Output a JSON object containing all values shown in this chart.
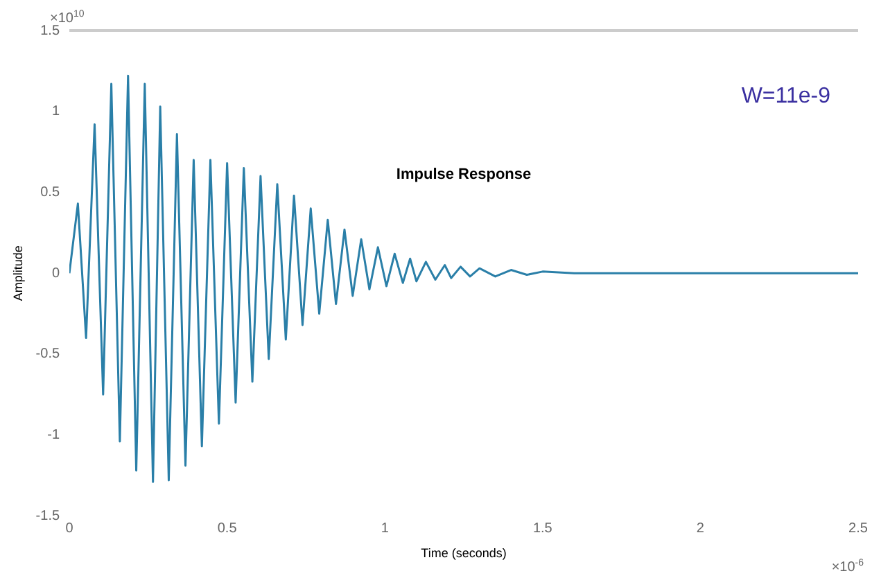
{
  "chart_data": {
    "type": "line",
    "title": "Impulse Response",
    "xlabel": "Time (seconds)",
    "ylabel": "Amplitude",
    "annotations": [
      "W=11e-9",
      "×10$^{10}$",
      "×10$^{-6}$"
    ],
    "x": [
      0,
      0.027,
      0.053,
      0.08,
      0.107,
      0.133,
      0.16,
      0.186,
      0.212,
      0.239,
      0.265,
      0.288,
      0.315,
      0.341,
      0.368,
      0.394,
      0.42,
      0.447,
      0.474,
      0.5,
      0.527,
      0.553,
      0.58,
      0.606,
      0.632,
      0.659,
      0.686,
      0.712,
      0.739,
      0.765,
      0.792,
      0.819,
      0.845,
      0.872,
      0.898,
      0.925,
      0.951,
      0.978,
      1.005,
      1.031,
      1.057,
      1.08,
      1.1,
      1.13,
      1.16,
      1.19,
      1.21,
      1.24,
      1.27,
      1.3,
      1.35,
      1.4,
      1.45,
      1.5,
      1.6,
      2.5
    ],
    "series": [
      {
        "color": "#2a7fa8",
        "values": [
          0,
          0.43,
          -0.4,
          0.92,
          -0.75,
          1.17,
          -1.04,
          1.22,
          -1.22,
          1.17,
          -1.29,
          1.03,
          -1.28,
          0.86,
          -1.19,
          0.7,
          -1.07,
          0.7,
          -0.93,
          0.68,
          -0.8,
          0.65,
          -0.67,
          0.6,
          -0.53,
          0.55,
          -0.41,
          0.48,
          -0.32,
          0.4,
          -0.25,
          0.33,
          -0.19,
          0.27,
          -0.14,
          0.21,
          -0.1,
          0.16,
          -0.08,
          0.12,
          -0.06,
          0.09,
          -0.05,
          0.07,
          -0.04,
          0.05,
          -0.03,
          0.04,
          -0.02,
          0.03,
          -0.02,
          0.02,
          -0.01,
          0.01,
          0,
          0
        ]
      }
    ],
    "xlim": [
      0,
      2.5
    ],
    "xticks": [
      0,
      0.5,
      1,
      1.5,
      2,
      2.5
    ],
    "ylim": [
      -1.5,
      1.5
    ],
    "yticks": [
      -1.5,
      -1,
      -0.5,
      0,
      0.5,
      1,
      1.5
    ],
    "grid": false,
    "legend": false,
    "marker": "none",
    "line_style": "solid"
  }
}
